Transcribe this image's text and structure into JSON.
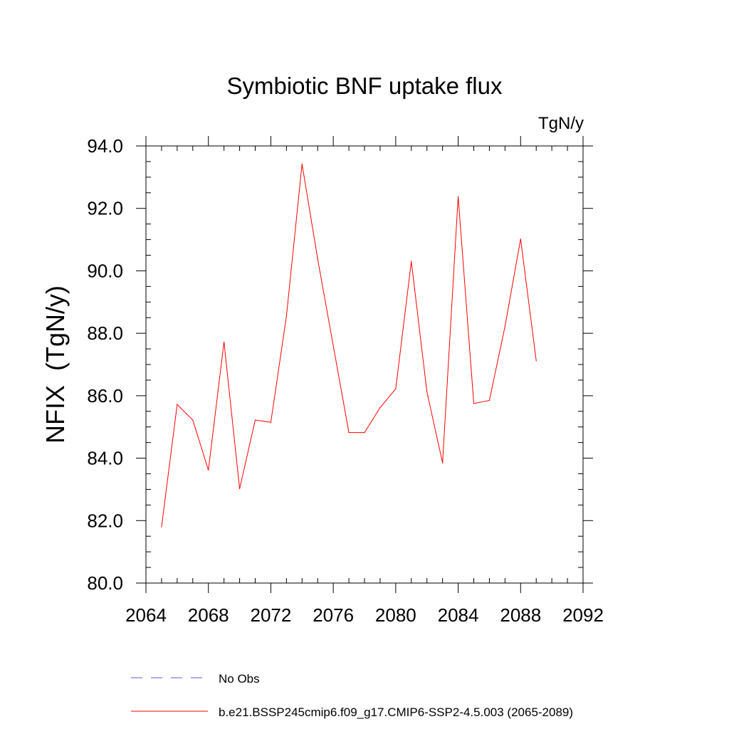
{
  "chart_data": {
    "type": "line",
    "title": "Symbiotic BNF uptake flux",
    "units_label": "TgN/y",
    "ylabel": "NFIX  (TgN/y)",
    "xlabel": "",
    "xlim": [
      2064,
      2092
    ],
    "ylim": [
      80.0,
      94.0
    ],
    "x_ticks": [
      "2064",
      "2068",
      "2072",
      "2076",
      "2080",
      "2084",
      "2088",
      "2092"
    ],
    "y_ticks": [
      "80.0",
      "82.0",
      "84.0",
      "86.0",
      "88.0",
      "90.0",
      "92.0",
      "94.0"
    ],
    "grid": false,
    "legend_position": "bottom",
    "legend": [
      {
        "label": "No Obs",
        "color": "#5b5bd6",
        "style": "dashed"
      },
      {
        "label": "b.e21.BSSP245cmip6.f09_g17.CMIP6-SSP2-4.5.003 (2065-2089)",
        "color": "#ff0000",
        "style": "solid"
      }
    ],
    "series": [
      {
        "name": "b.e21.BSSP245cmip6.f09_g17.CMIP6-SSP2-4.5.003 (2065-2089)",
        "color": "#ff0000",
        "x": [
          2065,
          2066,
          2067,
          2068,
          2069,
          2070,
          2071,
          2072,
          2073,
          2074,
          2075,
          2076,
          2077,
          2078,
          2079,
          2080,
          2081,
          2082,
          2083,
          2084,
          2085,
          2086,
          2087,
          2088,
          2089
        ],
        "y": [
          81.8,
          85.72,
          85.22,
          83.62,
          87.72,
          83.02,
          85.22,
          85.15,
          88.55,
          93.42,
          90.38,
          87.6,
          84.82,
          84.82,
          85.62,
          86.22,
          90.3,
          86.12,
          83.85,
          92.38,
          85.75,
          85.85,
          88.22,
          91.02,
          87.12
        ]
      }
    ]
  }
}
